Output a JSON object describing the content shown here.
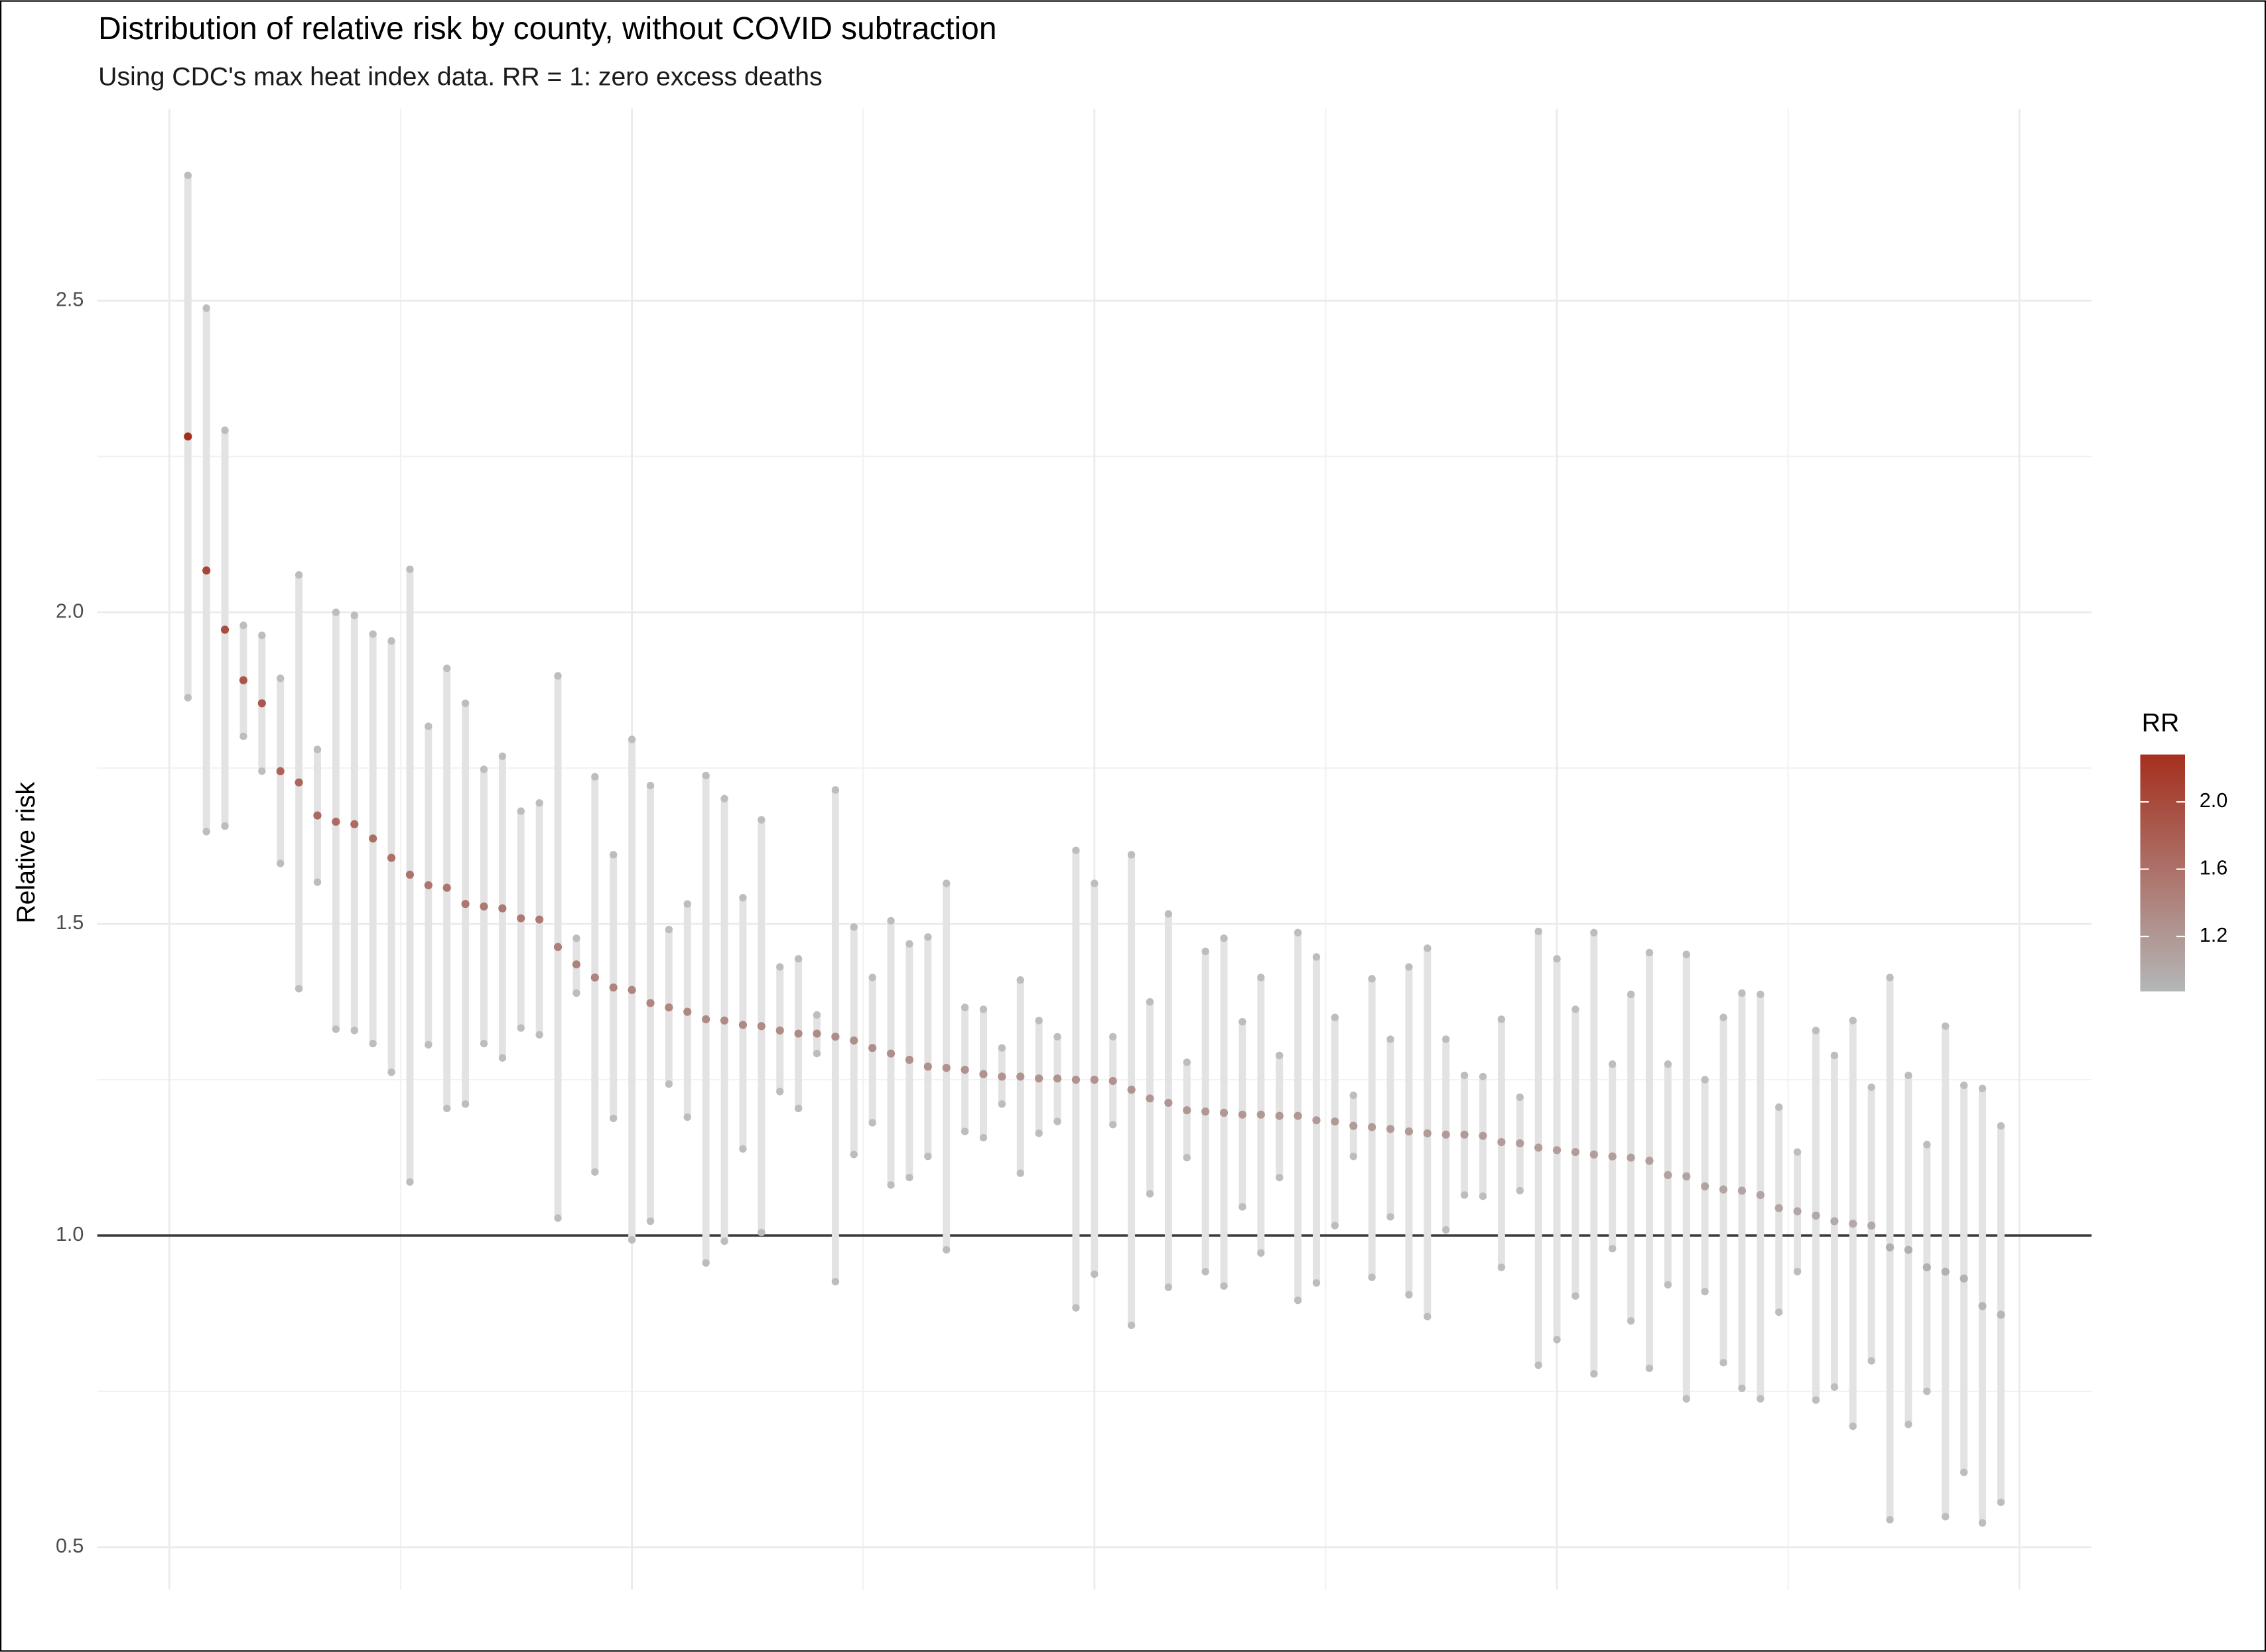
{
  "chart_data": {
    "type": "pointrange",
    "title": "Distribution of relative risk by county, without COVID subtraction",
    "subtitle": "Using CDC's max heat index data. RR = 1: zero excess deaths",
    "y_label": "Relative risk",
    "x": [
      1,
      2,
      3,
      4,
      5,
      6,
      7,
      8,
      9,
      10,
      11,
      12,
      13,
      14,
      15,
      16,
      17,
      18,
      19,
      20,
      21,
      22,
      23,
      24,
      25,
      26,
      27,
      28,
      29,
      30,
      31,
      32,
      33,
      34,
      35,
      36,
      37,
      38,
      39,
      40,
      41,
      42,
      43,
      44,
      45,
      46,
      47,
      48,
      49,
      50,
      51,
      52,
      53,
      54,
      55,
      56,
      57,
      58,
      59,
      60,
      61,
      62,
      63,
      64,
      65,
      66,
      67,
      68,
      69,
      70,
      71,
      72,
      73,
      74,
      75,
      76,
      77,
      78,
      79,
      80,
      81,
      82,
      83,
      84,
      85,
      86,
      87,
      88,
      89,
      90,
      91,
      92,
      93,
      94,
      95,
      96,
      97,
      98,
      99
    ],
    "values": [
      2.282,
      2.067,
      1.972,
      1.891,
      1.854,
      1.745,
      1.727,
      1.674,
      1.664,
      1.66,
      1.637,
      1.606,
      1.579,
      1.562,
      1.558,
      1.532,
      1.528,
      1.525,
      1.509,
      1.507,
      1.463,
      1.435,
      1.414,
      1.398,
      1.394,
      1.373,
      1.366,
      1.359,
      1.347,
      1.345,
      1.338,
      1.336,
      1.329,
      1.324,
      1.324,
      1.319,
      1.313,
      1.301,
      1.292,
      1.282,
      1.271,
      1.269,
      1.266,
      1.259,
      1.255,
      1.255,
      1.252,
      1.252,
      1.25,
      1.25,
      1.248,
      1.234,
      1.22,
      1.213,
      1.201,
      1.199,
      1.197,
      1.194,
      1.194,
      1.192,
      1.192,
      1.185,
      1.183,
      1.176,
      1.174,
      1.171,
      1.167,
      1.164,
      1.162,
      1.162,
      1.16,
      1.15,
      1.148,
      1.141,
      1.137,
      1.134,
      1.13,
      1.127,
      1.125,
      1.12,
      1.097,
      1.095,
      1.079,
      1.074,
      1.072,
      1.065,
      1.044,
      1.039,
      1.032,
      1.023,
      1.019,
      1.016,
      0.981,
      0.977,
      0.949,
      0.942,
      0.931,
      0.887,
      0.873
    ],
    "upper": [
      2.701,
      2.488,
      2.292,
      1.979,
      1.963,
      1.894,
      2.06,
      1.78,
      2.0,
      1.995,
      1.965,
      1.954,
      2.069,
      1.817,
      1.91,
      1.854,
      1.748,
      1.769,
      1.681,
      1.694,
      1.898,
      1.477,
      1.736,
      1.611,
      1.796,
      1.722,
      1.491,
      1.532,
      1.738,
      1.701,
      1.542,
      1.667,
      1.431,
      1.444,
      1.354,
      1.715,
      1.495,
      1.414,
      1.505,
      1.468,
      1.479,
      1.565,
      1.366,
      1.363,
      1.301,
      1.41,
      1.345,
      1.319,
      1.618,
      1.565,
      1.319,
      1.611,
      1.375,
      1.516,
      1.278,
      1.456,
      1.477,
      1.343,
      1.414,
      1.289,
      1.486,
      1.447,
      1.35,
      1.225,
      1.412,
      1.315,
      1.431,
      1.461,
      1.315,
      1.257,
      1.255,
      1.347,
      1.222,
      1.488,
      1.444,
      1.363,
      1.486,
      1.275,
      1.387,
      1.454,
      1.275,
      1.451,
      1.25,
      1.35,
      1.389,
      1.387,
      1.206,
      1.134,
      1.329,
      1.289,
      1.345,
      1.238,
      1.414,
      1.257,
      1.146,
      1.336,
      1.241,
      1.236,
      1.176
    ],
    "lower": [
      1.863,
      1.648,
      1.657,
      1.801,
      1.745,
      1.597,
      1.396,
      1.567,
      1.331,
      1.329,
      1.308,
      1.262,
      1.086,
      1.306,
      1.204,
      1.211,
      1.308,
      1.285,
      1.333,
      1.322,
      1.028,
      1.389,
      1.102,
      1.188,
      0.993,
      1.023,
      1.243,
      1.19,
      0.956,
      0.991,
      1.139,
      1.005,
      1.231,
      1.204,
      1.292,
      0.926,
      1.13,
      1.181,
      1.081,
      1.093,
      1.127,
      0.977,
      1.167,
      1.157,
      1.211,
      1.1,
      1.164,
      1.183,
      0.884,
      0.938,
      1.178,
      0.856,
      1.067,
      0.917,
      1.125,
      0.942,
      0.919,
      1.046,
      0.972,
      1.093,
      0.896,
      0.924,
      1.016,
      1.127,
      0.933,
      1.03,
      0.905,
      0.87,
      1.009,
      1.065,
      1.063,
      0.949,
      1.072,
      0.792,
      0.833,
      0.903,
      0.778,
      0.979,
      0.863,
      0.787,
      0.921,
      0.738,
      0.91,
      0.796,
      0.755,
      0.738,
      0.877,
      0.942,
      0.736,
      0.757,
      0.694,
      0.799,
      0.544,
      0.697,
      0.75,
      0.549,
      0.62,
      0.539,
      0.572
    ],
    "xlim": [
      -3.9,
      103.9
    ],
    "xticks": [
      0,
      25,
      50,
      75,
      100
    ],
    "ylim": [
      0.432,
      2.808
    ],
    "yticks": [
      0.5,
      {
        "value": 1,
        "label": "1.0"
      },
      1.5,
      {
        "value": 2,
        "label": "2.0"
      },
      2.5
    ],
    "grid": true,
    "hline": 1,
    "interval_color": "#e3e3e3",
    "endpoint_color": "#bdbdbd",
    "colorbar": {
      "title": "RR",
      "low_color": "#b4b7b8",
      "high_color": "#a52f1e",
      "ticks": [
        1.2,
        1.6,
        {
          "value": 2,
          "label": "2.0"
        }
      ]
    }
  }
}
